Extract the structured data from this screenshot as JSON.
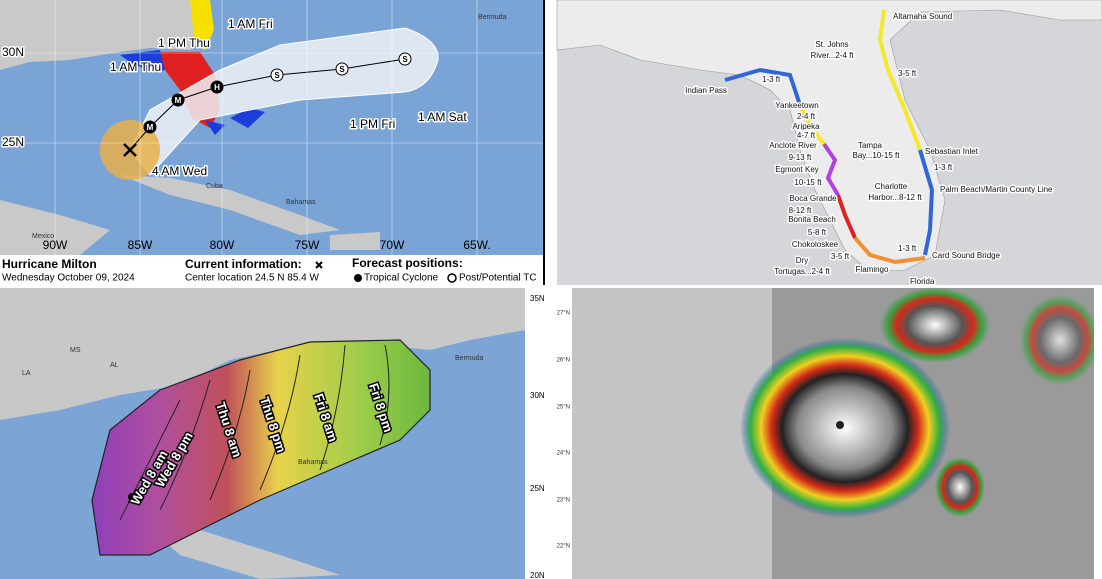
{
  "track_map": {
    "labels": [
      "1 AM Fri",
      "1 PM Thu",
      "1 AM Thu",
      "1 PM Fri",
      "1 AM Sat",
      "4 AM Wed"
    ],
    "markers": [
      "S",
      "S",
      "S",
      "H",
      "M",
      "M"
    ],
    "places": [
      "Bermuda",
      "Bahamas",
      "Cuba",
      "Mexico"
    ],
    "lat_labels": [
      "30N",
      "25N"
    ],
    "lon_labels": [
      "90W",
      "85W",
      "80W",
      "75W",
      "70W",
      "65W."
    ],
    "title": "Hurricane Milton",
    "date": "Wednesday October 09, 2024",
    "current_title": "Current information:",
    "center": "Center location 24.5 N 85.4 W",
    "forecast_title": "Forecast positions:",
    "legend": [
      "Tropical Cyclone",
      "Post/Potential TC"
    ]
  },
  "surge_map": {
    "labels": [
      "Altamaha Sound",
      "St. Johns",
      "River...2-4 ft",
      "3-5 ft",
      "Indian Pass",
      "1-3 ft",
      "Yankeetown",
      "2-4 ft",
      "Aripeka",
      "4-7 ft",
      "Anclote River",
      "9-13 ft",
      "Tampa",
      "Bay...10-15 ft",
      "Egmont Key",
      "10-15 ft",
      "Boca Grande",
      "8-12 ft",
      "Bonita Beach",
      "Charlotte",
      "Harbor...8-12 ft",
      "5-8 ft",
      "Chokoloskee",
      "3-5 ft",
      "Dry",
      "Tortugas...2-4 ft",
      "Flamingo",
      "1-3 ft",
      "Card Sound Bridge",
      "Sebastian Inlet",
      "1-3 ft",
      "Palm Beach/Martin County Line",
      "Florida"
    ]
  },
  "cone_map": {
    "times": [
      "Wed 8 am",
      "Wed 8 pm",
      "Thu 8 am",
      "Thu 8 pm",
      "Fri 8 am",
      "Fri 8 pm"
    ],
    "places": [
      "MS",
      "AL",
      "LA",
      "Bahamas",
      "Bermuda"
    ],
    "lat_labels": [
      "35N",
      "30N",
      "25N",
      "20N"
    ]
  },
  "satellite": {
    "lat_labels": [
      "27°N",
      "26°N",
      "25°N",
      "24°N",
      "23°N",
      "22°N"
    ]
  }
}
